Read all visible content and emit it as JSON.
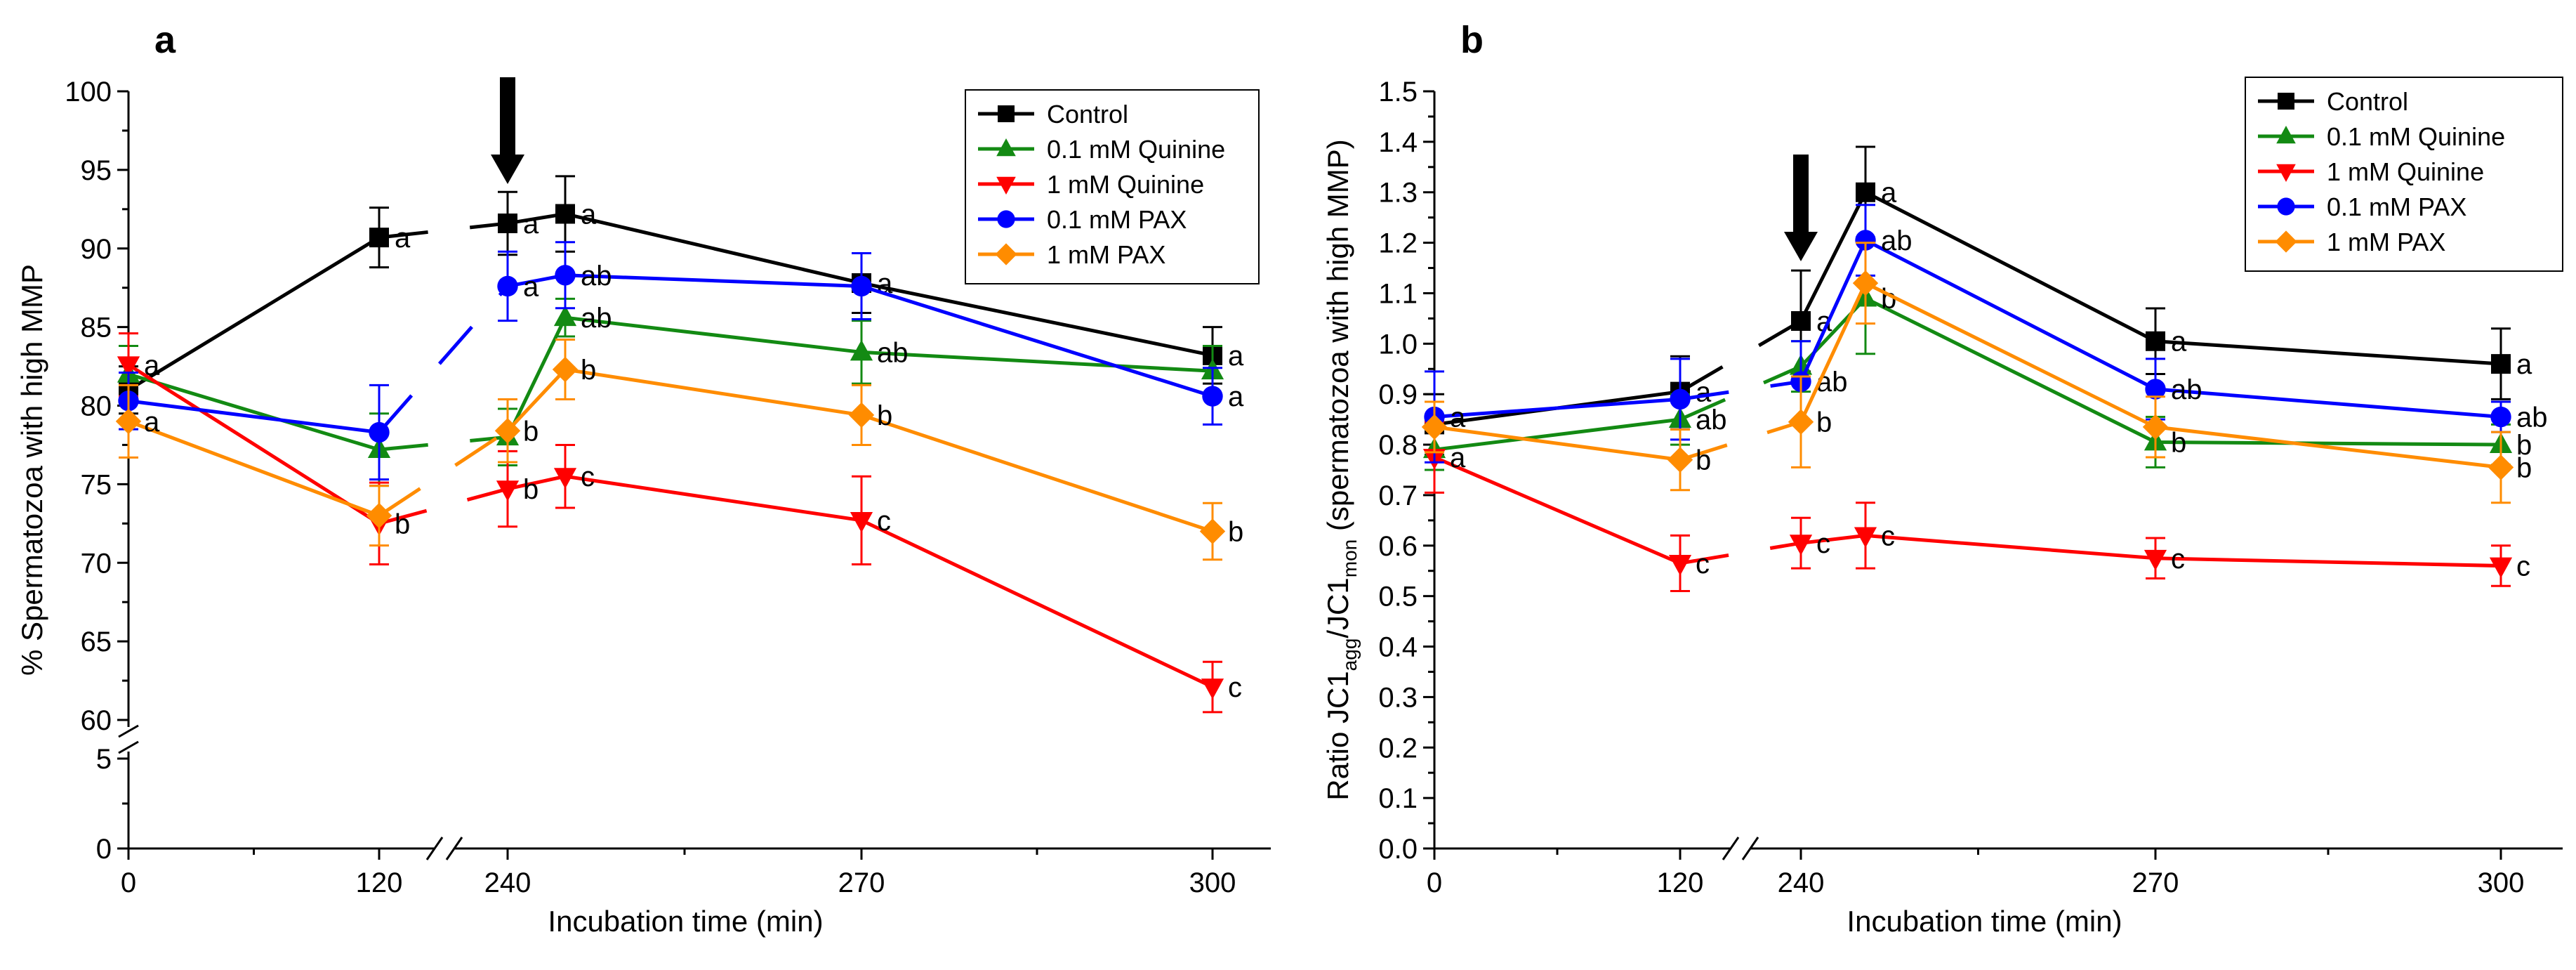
{
  "chart_data": [
    {
      "panel": "a",
      "type": "line",
      "xlabel": "Incubation time (min)",
      "ylabel": "% Spermatozoa with high MMP",
      "x_ticks": [
        "0",
        "120",
        "240",
        "270",
        "300"
      ],
      "y_ticks_upper": [
        "60",
        "65",
        "70",
        "75",
        "80",
        "85",
        "90",
        "95",
        "100"
      ],
      "y_ticks_lower": [
        "0",
        "5"
      ],
      "ylim_upper": [
        60,
        100
      ],
      "ylim_lower": [
        0,
        5
      ],
      "x_break": "between 120 and 240",
      "y_break": "between 5 and 60",
      "arrow_at": "240",
      "series": [
        {
          "name": "Control",
          "color": "#000000",
          "marker": "square",
          "values": [
            81.0,
            90.7,
            91.6,
            92.2,
            87.8,
            83.2
          ],
          "errors": [
            1.5,
            1.9,
            2.0,
            2.4,
            1.9,
            1.8
          ],
          "labels": [
            "",
            "a",
            "a",
            "a",
            "a",
            "a"
          ]
        },
        {
          "name": "0.1 mM Quinine",
          "color": "#138a13",
          "marker": "triangle-up",
          "values": [
            82.0,
            77.2,
            78.0,
            85.6,
            83.4,
            82.2
          ],
          "errors": [
            1.8,
            2.3,
            1.8,
            1.2,
            2.0,
            1.6
          ],
          "labels": [
            "",
            "",
            "",
            "ab",
            "ab",
            ""
          ]
        },
        {
          "name": "1 mM Quinine",
          "color": "#ff0000",
          "marker": "triangle-down",
          "values": [
            82.6,
            72.5,
            74.7,
            75.5,
            72.7,
            62.1
          ],
          "errors": [
            2.0,
            2.6,
            2.4,
            2.0,
            2.8,
            1.6
          ],
          "labels": [
            "a",
            "b",
            "b",
            "c",
            "c",
            "c"
          ]
        },
        {
          "name": "0.1 mM PAX",
          "color": "#0000ff",
          "marker": "circle",
          "values": [
            80.3,
            78.3,
            87.6,
            88.3,
            87.6,
            80.6
          ],
          "errors": [
            1.8,
            3.0,
            2.2,
            2.1,
            2.1,
            1.8
          ],
          "labels": [
            "",
            "",
            "a",
            "ab",
            "",
            "a"
          ]
        },
        {
          "name": "1 mM PAX",
          "color": "#ff8c00",
          "marker": "diamond",
          "values": [
            79.0,
            73.0,
            78.4,
            82.3,
            79.4,
            72.0
          ],
          "errors": [
            2.3,
            1.9,
            2.0,
            1.9,
            1.9,
            1.8
          ],
          "labels": [
            "a",
            "",
            "b",
            "b",
            "b",
            "b"
          ]
        }
      ],
      "x": [
        0,
        120,
        240,
        255,
        270,
        300
      ]
    },
    {
      "panel": "b",
      "type": "line",
      "xlabel": "Incubation time (min)",
      "ylabel_parts": {
        "a": "Ratio JC1",
        "sub1": "agg",
        "b": "/JC1",
        "sub2": "mon",
        "c": " (spermatozoa with high MMP)"
      },
      "x_ticks": [
        "0",
        "120",
        "240",
        "270",
        "300"
      ],
      "y_ticks": [
        "0.0",
        "0.1",
        "0.2",
        "0.3",
        "0.4",
        "0.5",
        "0.6",
        "0.7",
        "0.8",
        "0.9",
        "1.0",
        "1.1",
        "1.2",
        "1.3",
        "1.4",
        "1.5"
      ],
      "ylim": [
        0.0,
        1.5
      ],
      "x_break": "between 120 and 240",
      "arrow_at": "240",
      "series": [
        {
          "name": "Control",
          "color": "#000000",
          "marker": "square",
          "values": [
            0.84,
            0.905,
            1.045,
            1.3,
            1.005,
            0.96
          ],
          "errors": [
            0.06,
            0.07,
            0.1,
            0.09,
            0.065,
            0.07
          ],
          "labels": [
            "",
            "a",
            "a",
            "a",
            "a",
            "a"
          ]
        },
        {
          "name": "0.1 mM Quinine",
          "color": "#138a13",
          "marker": "triangle-up",
          "values": [
            0.79,
            0.85,
            0.955,
            1.09,
            0.805,
            0.8
          ],
          "errors": [
            0.04,
            0.05,
            0.05,
            0.11,
            0.05,
            0.04
          ],
          "labels": [
            "",
            "ab",
            "",
            "b",
            "b",
            "b"
          ]
        },
        {
          "name": "1 mM Quinine",
          "color": "#ff0000",
          "marker": "triangle-down",
          "values": [
            0.775,
            0.565,
            0.605,
            0.62,
            0.575,
            0.56
          ],
          "errors": [
            0.07,
            0.055,
            0.05,
            0.065,
            0.04,
            0.04
          ],
          "labels": [
            "a",
            "c",
            "c",
            "c",
            "c",
            "c"
          ]
        },
        {
          "name": "0.1 mM PAX",
          "color": "#0000ff",
          "marker": "circle",
          "values": [
            0.855,
            0.89,
            0.925,
            1.205,
            0.91,
            0.855
          ],
          "errors": [
            0.09,
            0.08,
            0.08,
            0.07,
            0.06,
            0.03
          ],
          "labels": [
            "a",
            "",
            "ab",
            "ab",
            "ab",
            "ab"
          ]
        },
        {
          "name": "1 mM PAX",
          "color": "#ff8c00",
          "marker": "diamond",
          "values": [
            0.835,
            0.77,
            0.845,
            1.12,
            0.835,
            0.755
          ],
          "errors": [
            0.05,
            0.06,
            0.09,
            0.08,
            0.06,
            0.07
          ],
          "labels": [
            "",
            "b",
            "b",
            "",
            "",
            "b"
          ]
        }
      ],
      "x": [
        0,
        120,
        240,
        255,
        270,
        300
      ]
    }
  ]
}
